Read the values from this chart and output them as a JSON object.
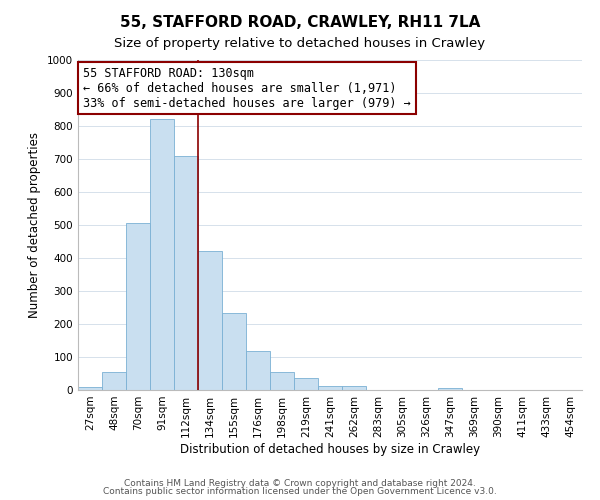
{
  "title": "55, STAFFORD ROAD, CRAWLEY, RH11 7LA",
  "subtitle": "Size of property relative to detached houses in Crawley",
  "xlabel": "Distribution of detached houses by size in Crawley",
  "ylabel": "Number of detached properties",
  "bar_labels": [
    "27sqm",
    "48sqm",
    "70sqm",
    "91sqm",
    "112sqm",
    "134sqm",
    "155sqm",
    "176sqm",
    "198sqm",
    "219sqm",
    "241sqm",
    "262sqm",
    "283sqm",
    "305sqm",
    "326sqm",
    "347sqm",
    "369sqm",
    "390sqm",
    "411sqm",
    "433sqm",
    "454sqm"
  ],
  "bar_values": [
    10,
    55,
    505,
    820,
    710,
    420,
    233,
    118,
    55,
    35,
    12,
    12,
    0,
    0,
    0,
    5,
    0,
    0,
    0,
    0,
    0
  ],
  "bar_color": "#c9dff0",
  "bar_edge_color": "#7ab0d4",
  "vline_index": 4.5,
  "vline_color": "#8b0000",
  "annotation_text": "55 STAFFORD ROAD: 130sqm\n← 66% of detached houses are smaller (1,971)\n33% of semi-detached houses are larger (979) →",
  "annotation_box_color": "white",
  "annotation_box_edge_color": "#8b0000",
  "ylim": [
    0,
    1000
  ],
  "yticks": [
    0,
    100,
    200,
    300,
    400,
    500,
    600,
    700,
    800,
    900,
    1000
  ],
  "footer_line1": "Contains HM Land Registry data © Crown copyright and database right 2024.",
  "footer_line2": "Contains public sector information licensed under the Open Government Licence v3.0.",
  "title_fontsize": 11,
  "subtitle_fontsize": 9.5,
  "axis_label_fontsize": 8.5,
  "tick_fontsize": 7.5,
  "annotation_fontsize": 8.5,
  "footer_fontsize": 6.5,
  "background_color": "#ffffff",
  "grid_color": "#d0dce8"
}
